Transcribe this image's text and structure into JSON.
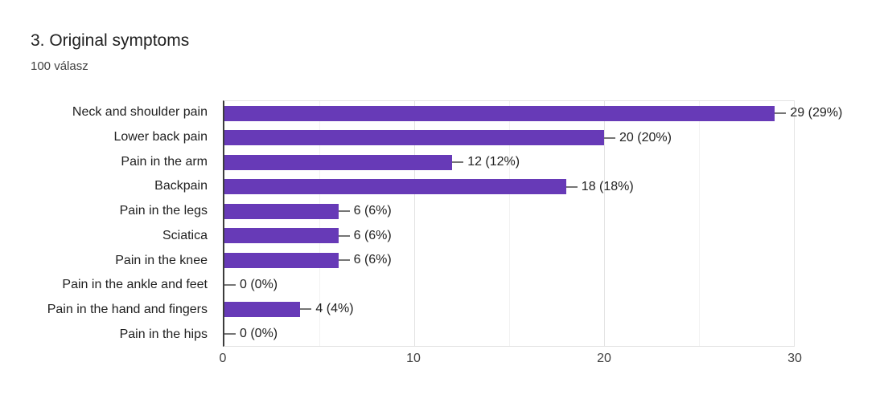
{
  "header": {
    "title": "3. Original symptoms",
    "subtitle": "100 válasz"
  },
  "chart_data": {
    "type": "bar",
    "orientation": "horizontal",
    "title": "3. Original symptoms",
    "subtitle": "100 válasz",
    "categories": [
      "Neck and shoulder pain",
      "Lower back pain",
      "Pain in the arm",
      "Backpain",
      "Pain in the legs",
      "Sciatica",
      "Pain in the knee",
      "Pain in the ankle and feet",
      "Pain in the hand and fingers",
      "Pain in the hips"
    ],
    "values": [
      29,
      20,
      12,
      18,
      6,
      6,
      6,
      0,
      4,
      0
    ],
    "value_labels": [
      "29 (29%)",
      "20 (20%)",
      "12 (12%)",
      "18 (18%)",
      "6 (6%)",
      "6 (6%)",
      "6 (6%)",
      "0 (0%)",
      "4 (4%)",
      "0 (0%)"
    ],
    "xlabel": "",
    "ylabel": "",
    "xlim": [
      0,
      30
    ],
    "x_ticks": [
      "0",
      "10",
      "20",
      "30"
    ],
    "x_tick_values": [
      0,
      10,
      20,
      30
    ],
    "minor_gridline_values": [
      5,
      15,
      25
    ],
    "grid": "vertical",
    "legend": "none",
    "colors": {
      "bar": "#673ab7",
      "axis": "#3c3c3c",
      "gridline_major": "#e3e3e3",
      "gridline_minor": "#f2f2f2",
      "connector": "#757575",
      "title_text": "#212121",
      "subtitle_text": "#424242",
      "label_text": "#212121",
      "tick_text": "#424242"
    }
  }
}
